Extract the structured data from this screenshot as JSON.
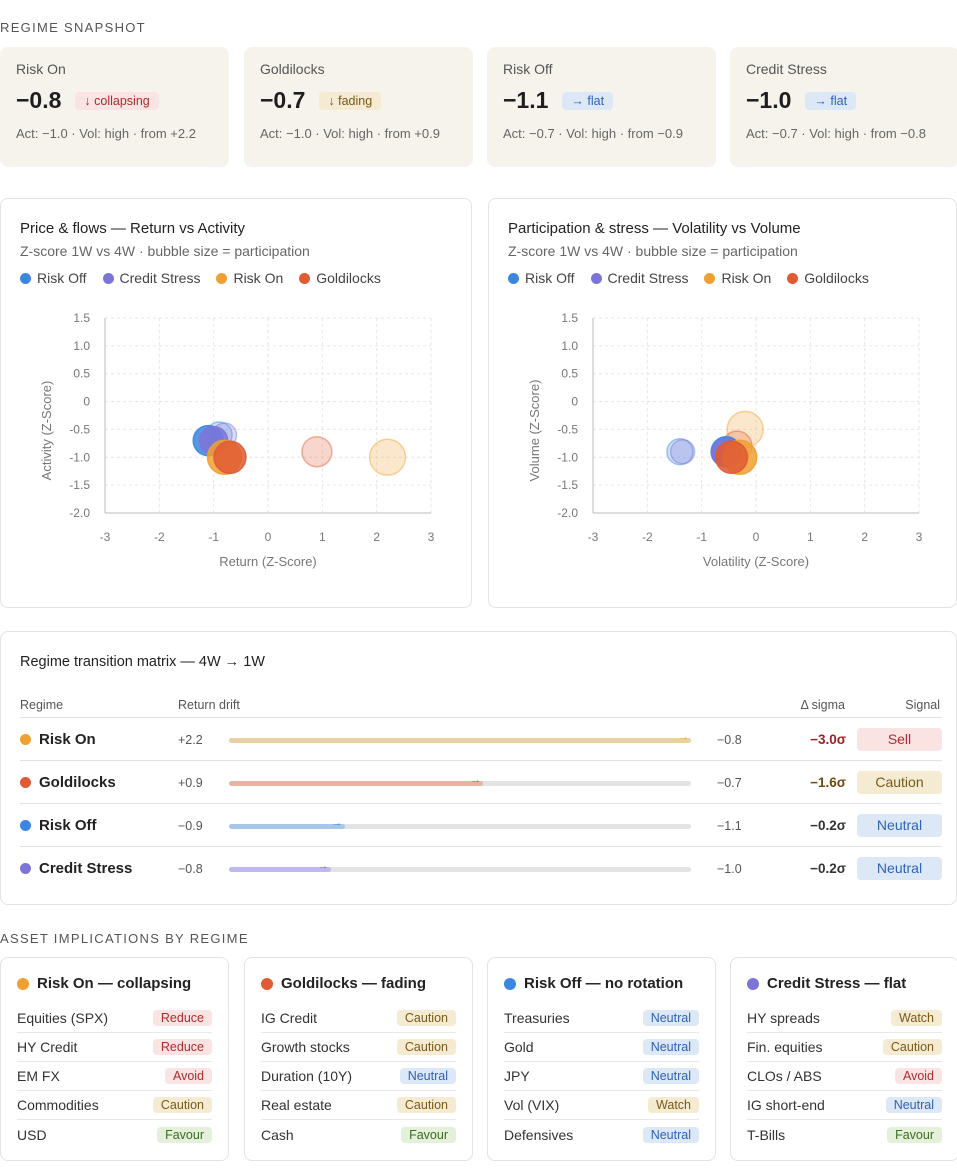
{
  "colors": {
    "risk_on": "#f0a030",
    "goldilocks": "#e05a33",
    "risk_off": "#3a86e0",
    "credit_stress": "#7d74d8"
  },
  "snapshot": {
    "heading": "REGIME SNAPSHOT",
    "cards": [
      {
        "name": "Risk On",
        "value": "−0.8",
        "badge": "↓ collapsing",
        "tone": "red",
        "meta": "Act: −1.0 · Vol: high · from +2.2"
      },
      {
        "name": "Goldilocks",
        "value": "−0.7",
        "badge": "↓ fading",
        "tone": "amber",
        "meta": "Act: −1.0 · Vol: high · from +0.9"
      },
      {
        "name": "Risk Off",
        "value": "−1.1",
        "badge": "→ flat",
        "tone": "blue",
        "meta": "Act: −0.7 · Vol: high · from −0.9"
      },
      {
        "name": "Credit Stress",
        "value": "−1.0",
        "badge": "→ flat",
        "tone": "blue",
        "meta": "Act: −0.7 · Vol: high · from −0.8"
      }
    ]
  },
  "legend": [
    "Risk Off",
    "Credit Stress",
    "Risk On",
    "Goldilocks"
  ],
  "legend_colors": [
    "#3a86e0",
    "#7d74d8",
    "#f0a030",
    "#e05a33"
  ],
  "chart_data": [
    {
      "type": "scatter",
      "title": "Price & flows — Return vs Activity",
      "subtitle": "Z-score 1W vs 4W · bubble size = participation",
      "xlabel": "Return (Z-Score)",
      "ylabel": "Activity (Z-Score)",
      "xlim": [
        -3,
        3
      ],
      "ylim": [
        -2.0,
        1.5
      ],
      "xticks": [
        "-3",
        "-2",
        "-1",
        "0",
        "1",
        "2",
        "3"
      ],
      "yticks": [
        "1.5",
        "1.0",
        "0.5",
        "0",
        "-0.5",
        "-1.0",
        "-1.5",
        "-2.0"
      ],
      "grid": true,
      "series": [
        {
          "name": "Risk Off",
          "color": "#3a86e0",
          "points": [
            {
              "x": -0.9,
              "y": -0.6,
              "r": 13,
              "t": "4W"
            },
            {
              "x": -1.1,
              "y": -0.7,
              "r": 15,
              "t": "1W"
            }
          ]
        },
        {
          "name": "Credit Stress",
          "color": "#7d74d8",
          "points": [
            {
              "x": -0.8,
              "y": -0.6,
              "r": 12,
              "t": "4W"
            },
            {
              "x": -1.0,
              "y": -0.7,
              "r": 14,
              "t": "1W"
            }
          ]
        },
        {
          "name": "Risk On",
          "color": "#f0a030",
          "points": [
            {
              "x": 2.2,
              "y": -1.0,
              "r": 18,
              "t": "4W"
            },
            {
              "x": -0.8,
              "y": -1.0,
              "r": 17,
              "t": "1W"
            }
          ]
        },
        {
          "name": "Goldilocks",
          "color": "#e05a33",
          "points": [
            {
              "x": 0.9,
              "y": -0.9,
              "r": 15,
              "t": "4W"
            },
            {
              "x": -0.7,
              "y": -1.0,
              "r": 16,
              "t": "1W"
            }
          ]
        }
      ]
    },
    {
      "type": "scatter",
      "title": "Participation & stress — Volatility vs Volume",
      "subtitle": "Z-score 1W vs 4W · bubble size = participation",
      "xlabel": "Volatility (Z-Score)",
      "ylabel": "Volume (Z-Score)",
      "xlim": [
        -3,
        3
      ],
      "ylim": [
        -2.0,
        1.5
      ],
      "xticks": [
        "-3",
        "-2",
        "-1",
        "0",
        "1",
        "2",
        "3"
      ],
      "yticks": [
        "1.5",
        "1.0",
        "0.5",
        "0",
        "-0.5",
        "-1.0",
        "-1.5",
        "-2.0"
      ],
      "grid": true,
      "series": [
        {
          "name": "Risk Off",
          "color": "#3a86e0",
          "points": [
            {
              "x": -1.4,
              "y": -0.9,
              "r": 13,
              "t": "4W"
            },
            {
              "x": -0.55,
              "y": -0.9,
              "r": 15,
              "t": "1W"
            }
          ]
        },
        {
          "name": "Credit Stress",
          "color": "#7d74d8",
          "points": [
            {
              "x": -1.35,
              "y": -0.9,
              "r": 12,
              "t": "4W"
            },
            {
              "x": -0.55,
              "y": -0.92,
              "r": 14,
              "t": "1W"
            }
          ]
        },
        {
          "name": "Risk On",
          "color": "#f0a030",
          "points": [
            {
              "x": -0.2,
              "y": -0.5,
              "r": 18,
              "t": "4W"
            },
            {
              "x": -0.3,
              "y": -1.0,
              "r": 17,
              "t": "1W"
            }
          ]
        },
        {
          "name": "Goldilocks",
          "color": "#e05a33",
          "points": [
            {
              "x": -0.35,
              "y": -0.8,
              "r": 15,
              "t": "4W"
            },
            {
              "x": -0.45,
              "y": -1.0,
              "r": 16,
              "t": "1W"
            }
          ]
        }
      ]
    }
  ],
  "matrix": {
    "title": "Regime transition matrix — 4W → 1W",
    "headers": {
      "regime": "Regime",
      "drift": "Return drift",
      "delta": "Δ sigma",
      "signal": "Signal"
    },
    "rows": [
      {
        "name": "Risk On",
        "color": "#f0a030",
        "from": "+2.2",
        "to": "−0.8",
        "drift": 1.0,
        "delta": "−3.0σ",
        "delta_color": "#9b1f1f",
        "signal": "Sell",
        "tone": "red",
        "fill": "#e9cfa6"
      },
      {
        "name": "Goldilocks",
        "color": "#e05a33",
        "from": "+0.9",
        "to": "−0.7",
        "drift": 0.55,
        "delta": "−1.6σ",
        "delta_color": "#6e4b10",
        "signal": "Caution",
        "tone": "amber",
        "fill": "#e8b3a4"
      },
      {
        "name": "Risk Off",
        "color": "#3a86e0",
        "from": "−0.9",
        "to": "−1.1",
        "drift": 0.25,
        "delta": "−0.2σ",
        "delta_color": "#333333",
        "signal": "Neutral",
        "tone": "blue",
        "fill": "#a8c6ea"
      },
      {
        "name": "Credit Stress",
        "color": "#7d74d8",
        "from": "−0.8",
        "to": "−1.0",
        "drift": 0.22,
        "delta": "−0.2σ",
        "delta_color": "#333333",
        "signal": "Neutral",
        "tone": "blue",
        "fill": "#bebaed"
      }
    ]
  },
  "assets": {
    "heading": "ASSET IMPLICATIONS BY REGIME",
    "cards": [
      {
        "title": "Risk On — collapsing",
        "color": "#f0a030",
        "items": [
          {
            "name": "Equities (SPX)",
            "tag": "Reduce",
            "tone": "red"
          },
          {
            "name": "HY Credit",
            "tag": "Reduce",
            "tone": "red"
          },
          {
            "name": "EM FX",
            "tag": "Avoid",
            "tone": "red"
          },
          {
            "name": "Commodities",
            "tag": "Caution",
            "tone": "amber"
          },
          {
            "name": "USD",
            "tag": "Favour",
            "tone": "green"
          }
        ]
      },
      {
        "title": "Goldilocks — fading",
        "color": "#e05a33",
        "items": [
          {
            "name": "IG Credit",
            "tag": "Caution",
            "tone": "amber"
          },
          {
            "name": "Growth stocks",
            "tag": "Caution",
            "tone": "amber"
          },
          {
            "name": "Duration (10Y)",
            "tag": "Neutral",
            "tone": "blue"
          },
          {
            "name": "Real estate",
            "tag": "Caution",
            "tone": "amber"
          },
          {
            "name": "Cash",
            "tag": "Favour",
            "tone": "green"
          }
        ]
      },
      {
        "title": "Risk Off — no rotation",
        "color": "#3a86e0",
        "items": [
          {
            "name": "Treasuries",
            "tag": "Neutral",
            "tone": "blue"
          },
          {
            "name": "Gold",
            "tag": "Neutral",
            "tone": "blue"
          },
          {
            "name": "JPY",
            "tag": "Neutral",
            "tone": "blue"
          },
          {
            "name": "Vol (VIX)",
            "tag": "Watch",
            "tone": "amber"
          },
          {
            "name": "Defensives",
            "tag": "Neutral",
            "tone": "blue"
          }
        ]
      },
      {
        "title": "Credit Stress — flat",
        "color": "#7d74d8",
        "items": [
          {
            "name": "HY spreads",
            "tag": "Watch",
            "tone": "amber"
          },
          {
            "name": "Fin. equities",
            "tag": "Caution",
            "tone": "amber"
          },
          {
            "name": "CLOs / ABS",
            "tag": "Avoid",
            "tone": "red"
          },
          {
            "name": "IG short-end",
            "tag": "Neutral",
            "tone": "blue"
          },
          {
            "name": "T-Bills",
            "tag": "Favour",
            "tone": "green"
          }
        ]
      }
    ]
  }
}
